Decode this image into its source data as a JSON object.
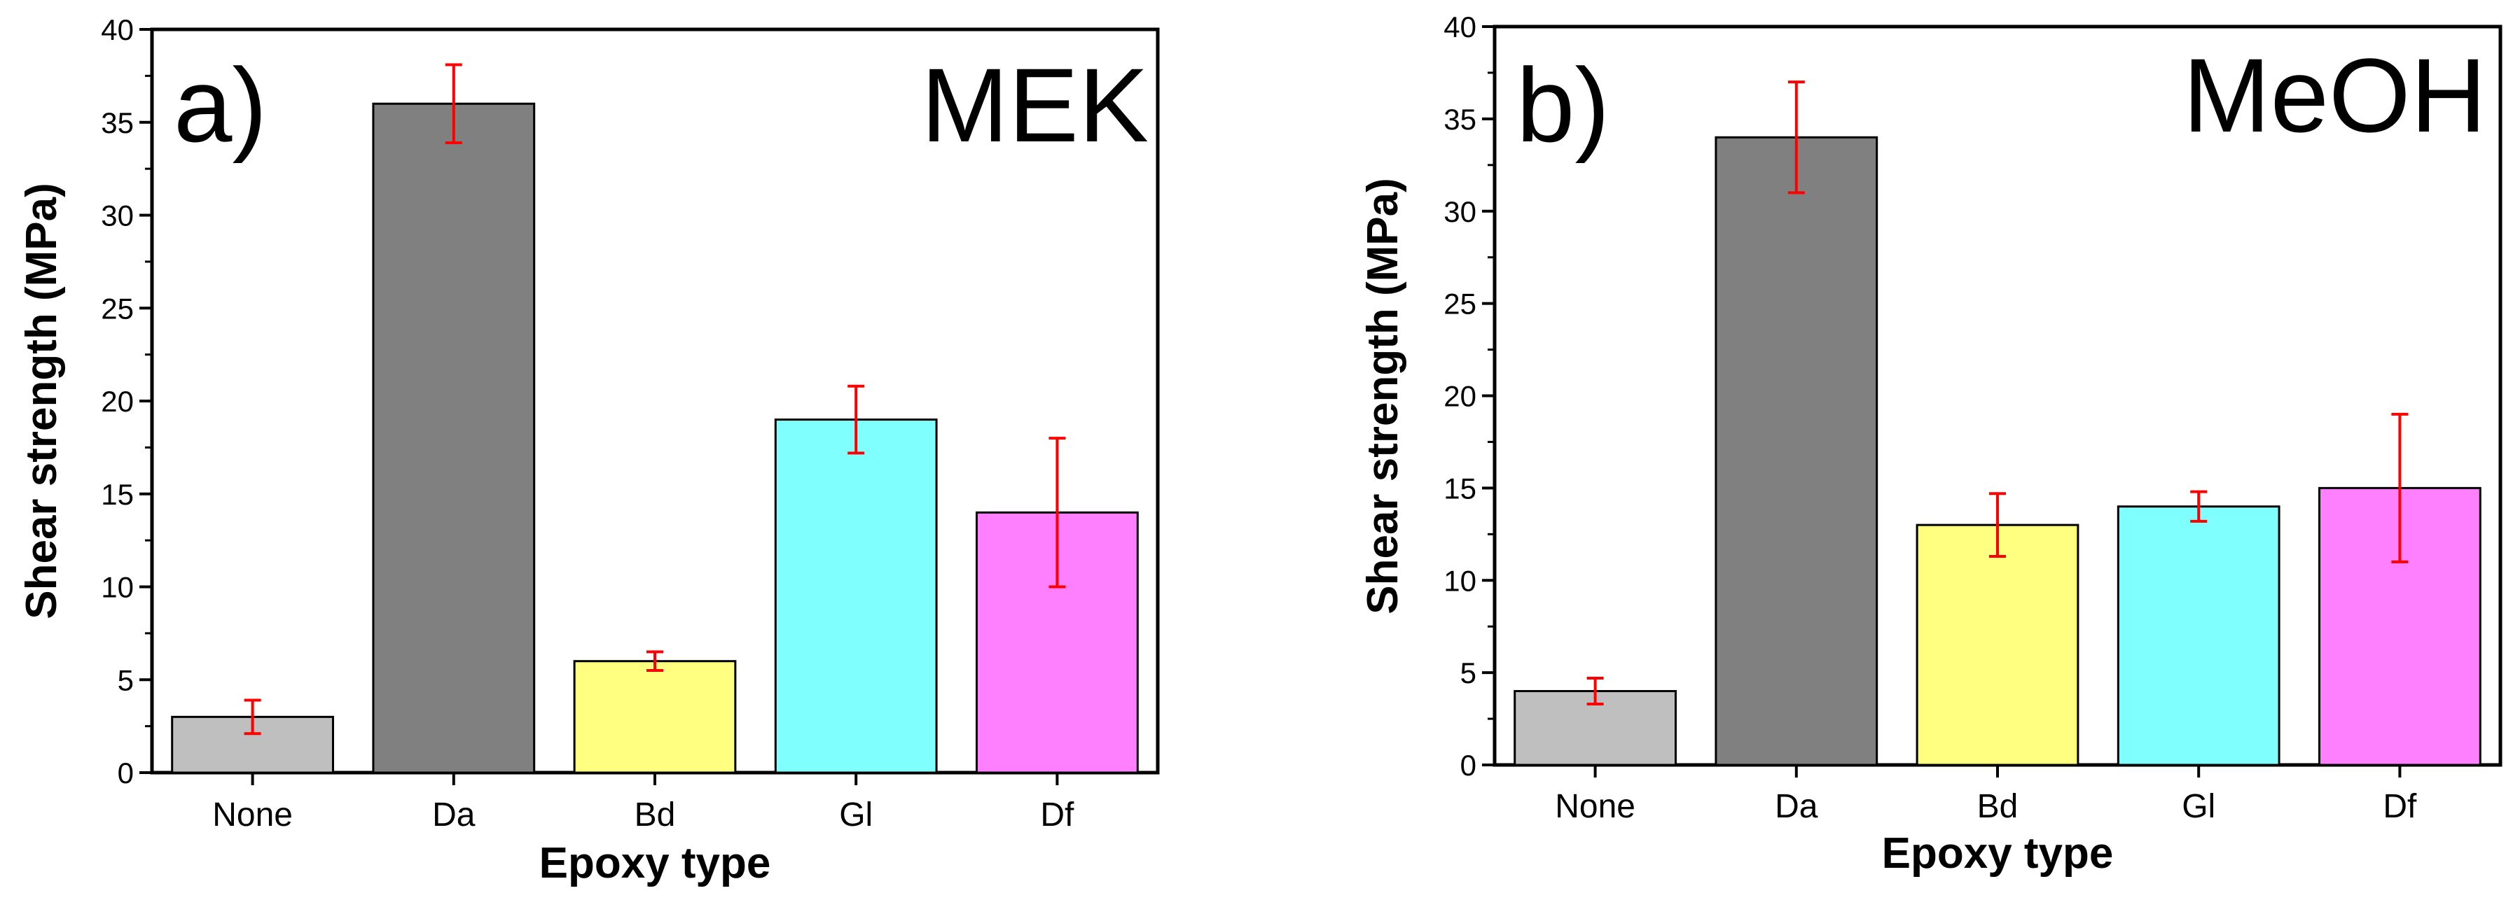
{
  "colors": {
    "None": "#bfbfbf",
    "Da": "#808080",
    "Bd": "#ffff80",
    "Gl": "#80ffff",
    "Df": "#ff80ff",
    "error_bar": "#ff0000",
    "bar_edge": "#000000"
  },
  "chart_data": [
    {
      "type": "bar",
      "panel_label": "a)",
      "title": "MEK",
      "xlabel": "Epoxy type",
      "ylabel": "Shear strength (MPa)",
      "ylim": [
        0,
        40
      ],
      "yticks": [
        0,
        5,
        10,
        15,
        20,
        25,
        30,
        35,
        40
      ],
      "yticks_text": [
        "0",
        "5",
        "10",
        "15",
        "20",
        "25",
        "30",
        "35",
        "40"
      ],
      "categories": [
        "None",
        "Da",
        "Bd",
        "Gl",
        "Df"
      ],
      "values": [
        3,
        36,
        6,
        19,
        14
      ],
      "errors": [
        0.9,
        2.1,
        0.5,
        1.8,
        4.0
      ]
    },
    {
      "type": "bar",
      "panel_label": "b)",
      "title": "MeOH",
      "xlabel": "Epoxy type",
      "ylabel": "Shear strength (MPa)",
      "ylim": [
        0,
        40
      ],
      "yticks": [
        0,
        5,
        10,
        15,
        20,
        25,
        30,
        35,
        40
      ],
      "yticks_text": [
        "0",
        "5",
        "10",
        "15",
        "20",
        "25",
        "30",
        "35",
        "40"
      ],
      "categories": [
        "None",
        "Da",
        "Bd",
        "Gl",
        "Df"
      ],
      "values": [
        4,
        34,
        13,
        14,
        15
      ],
      "errors": [
        0.7,
        3.0,
        1.7,
        0.8,
        4.0
      ]
    }
  ]
}
